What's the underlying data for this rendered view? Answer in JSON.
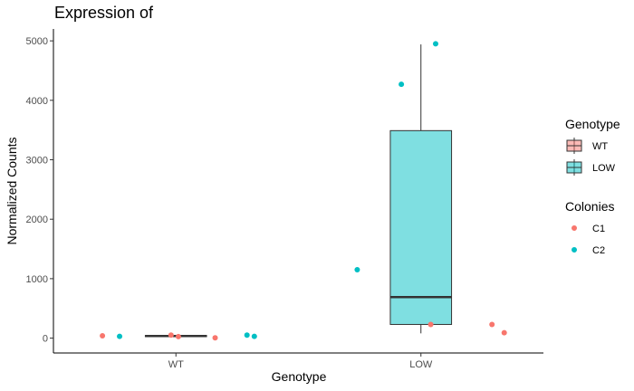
{
  "chart_data": {
    "type": "box",
    "title": "Expression of",
    "xlabel": "Genotype",
    "ylabel": "Normalized Counts",
    "categories": [
      "WT",
      "LOW"
    ],
    "ylim": [
      -250,
      5200
    ],
    "yticks": [
      0,
      1000,
      2000,
      3000,
      4000,
      5000
    ],
    "grid": false,
    "colors": {
      "WT": "#F8766D",
      "LOW": "#00BFC4",
      "C1": "#F8766D",
      "C2": "#00BFC4"
    },
    "boxes": [
      {
        "category": "WT",
        "min": 15,
        "q1": 25,
        "median": 35,
        "q3": 45,
        "max": 55
      },
      {
        "category": "LOW",
        "min": 80,
        "q1": 230,
        "median": 690,
        "q3": 3490,
        "max": 4940
      }
    ],
    "points": [
      {
        "category": "WT",
        "colony": "C1",
        "offset": -0.3,
        "y": 40
      },
      {
        "category": "WT",
        "colony": "C2",
        "offset": -0.23,
        "y": 30
      },
      {
        "category": "WT",
        "colony": "C1",
        "offset": -0.02,
        "y": 50
      },
      {
        "category": "WT",
        "colony": "C1",
        "offset": 0.01,
        "y": 25
      },
      {
        "category": "WT",
        "colony": "C1",
        "offset": 0.16,
        "y": 5
      },
      {
        "category": "WT",
        "colony": "C2",
        "offset": 0.29,
        "y": 50
      },
      {
        "category": "WT",
        "colony": "C2",
        "offset": 0.32,
        "y": 30
      },
      {
        "category": "LOW",
        "colony": "C2",
        "offset": -0.26,
        "y": 1150
      },
      {
        "category": "LOW",
        "colony": "C2",
        "offset": -0.08,
        "y": 4270
      },
      {
        "category": "LOW",
        "colony": "C2",
        "offset": 0.06,
        "y": 4950
      },
      {
        "category": "LOW",
        "colony": "C1",
        "offset": 0.04,
        "y": 230
      },
      {
        "category": "LOW",
        "colony": "C1",
        "offset": 0.29,
        "y": 230
      },
      {
        "category": "LOW",
        "colony": "C1",
        "offset": 0.34,
        "y": 90
      }
    ],
    "legend_placement": "right",
    "legends": [
      {
        "title": "Genotype",
        "kind": "box",
        "items": [
          "WT",
          "LOW"
        ]
      },
      {
        "title": "Colonies",
        "kind": "point",
        "items": [
          "C1",
          "C2"
        ]
      }
    ]
  }
}
